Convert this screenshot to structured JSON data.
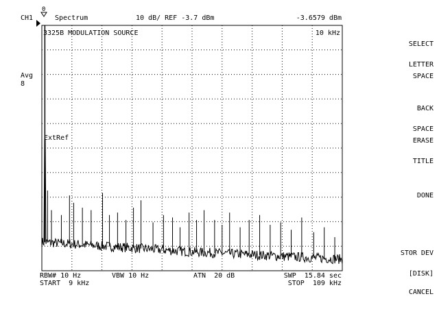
{
  "header": {
    "channel": "CH1",
    "marker_num": "0",
    "mode": "Spectrum",
    "scale_ref": "10 dB/ REF -3.7 dBm",
    "marker_value": "-3.6579 dBm"
  },
  "left_panel": {
    "avg_label": "Avg",
    "avg_value": "8"
  },
  "graph": {
    "title": "3325B MODULATION SOURCE",
    "marker_freq": "10 kHz",
    "ext_ref": "ExtRef"
  },
  "footer": {
    "rbw": "RBW# 10 Hz",
    "vbw": "VBW 10 Hz",
    "atn": "ATN  20 dB",
    "swp": "SWP  15.84 sec",
    "start": "START  9 kHz",
    "stop": "STOP  109 kHz"
  },
  "softkeys": [
    {
      "line1": "SELECT",
      "line2": "LETTER"
    },
    {
      "line1": "SPACE",
      "line2": ""
    },
    {
      "line1": "BACK",
      "line2": "SPACE"
    },
    {
      "line1": "ERASE",
      "line2": "TITLE"
    },
    {
      "line1": "DONE",
      "line2": ""
    },
    {
      "line1": "STOR DEV",
      "line2": "[DISK]"
    },
    {
      "line1": "CANCEL",
      "line2": ""
    }
  ],
  "chart_data": {
    "type": "line",
    "x_start_khz": 9,
    "x_stop_khz": 109,
    "ref_dbm": -3.7,
    "db_per_div": 10,
    "divisions_x": 10,
    "divisions_y": 10,
    "grid": true,
    "carrier": {
      "freq_khz": 10,
      "level_dbm": -3.66
    },
    "noise_floor_dbm": [
      {
        "freq_khz": 9,
        "level_dbm": -92
      },
      {
        "freq_khz": 59,
        "level_dbm": -96
      },
      {
        "freq_khz": 109,
        "level_dbm": -99
      }
    ],
    "spurs": [
      {
        "freq_khz": 10.9,
        "level_dbm": -71
      },
      {
        "freq_khz": 12.2,
        "level_dbm": -79
      },
      {
        "freq_khz": 15.5,
        "level_dbm": -81
      },
      {
        "freq_khz": 18.2,
        "level_dbm": -73
      },
      {
        "freq_khz": 19.6,
        "level_dbm": -76
      },
      {
        "freq_khz": 22.5,
        "level_dbm": -78
      },
      {
        "freq_khz": 25.4,
        "level_dbm": -79
      },
      {
        "freq_khz": 29.2,
        "level_dbm": -72
      },
      {
        "freq_khz": 31.5,
        "level_dbm": -81
      },
      {
        "freq_khz": 34.2,
        "level_dbm": -80
      },
      {
        "freq_khz": 37.0,
        "level_dbm": -83
      },
      {
        "freq_khz": 39.5,
        "level_dbm": -78
      },
      {
        "freq_khz": 42.0,
        "level_dbm": -75
      },
      {
        "freq_khz": 46.0,
        "level_dbm": -84
      },
      {
        "freq_khz": 49.5,
        "level_dbm": -81
      },
      {
        "freq_khz": 52.5,
        "level_dbm": -82
      },
      {
        "freq_khz": 55.0,
        "level_dbm": -86
      },
      {
        "freq_khz": 58.0,
        "level_dbm": -80
      },
      {
        "freq_khz": 60.5,
        "level_dbm": -83
      },
      {
        "freq_khz": 63.0,
        "level_dbm": -79
      },
      {
        "freq_khz": 66.5,
        "level_dbm": -83
      },
      {
        "freq_khz": 69.0,
        "level_dbm": -85
      },
      {
        "freq_khz": 71.5,
        "level_dbm": -80
      },
      {
        "freq_khz": 75.0,
        "level_dbm": -86
      },
      {
        "freq_khz": 78.0,
        "level_dbm": -83
      },
      {
        "freq_khz": 81.5,
        "level_dbm": -81
      },
      {
        "freq_khz": 85.0,
        "level_dbm": -85
      },
      {
        "freq_khz": 88.5,
        "level_dbm": -84
      },
      {
        "freq_khz": 92.0,
        "level_dbm": -87
      },
      {
        "freq_khz": 95.5,
        "level_dbm": -82
      },
      {
        "freq_khz": 99.5,
        "level_dbm": -88
      },
      {
        "freq_khz": 103.0,
        "level_dbm": -86
      },
      {
        "freq_khz": 106.5,
        "level_dbm": -90
      }
    ]
  }
}
